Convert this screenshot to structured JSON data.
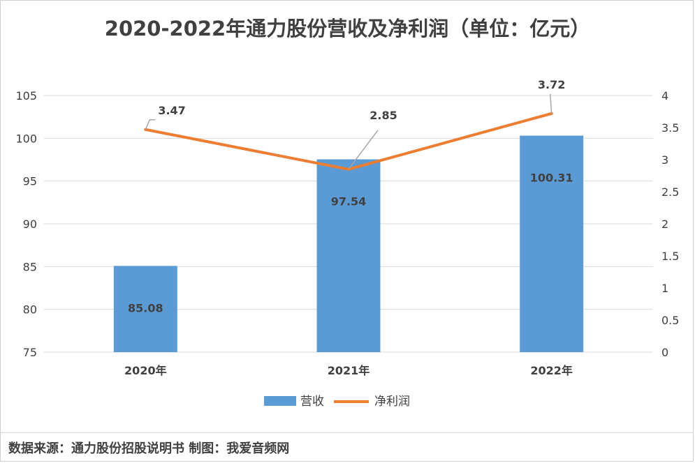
{
  "title": "2020-2022年通力股份营收及净利润（单位：亿元）",
  "footer": "数据来源：通力股份招股说明书 制图：我爱音频网",
  "chart_data": {
    "type": "bar+line",
    "title": "2020-2022年通力股份营收及净利润（单位：亿元）",
    "categories": [
      "2020年",
      "2021年",
      "2022年"
    ],
    "series": [
      {
        "name": "营收",
        "type": "bar",
        "axis": "left",
        "values": [
          85.08,
          97.54,
          100.31
        ],
        "labels": [
          "85.08",
          "97.54",
          "100.31"
        ],
        "color": "#5B9BD5"
      },
      {
        "name": "净利润",
        "type": "line",
        "axis": "right",
        "values": [
          3.47,
          2.85,
          3.72
        ],
        "labels": [
          "3.47",
          "2.85",
          "3.72"
        ],
        "color": "#ED7D31"
      }
    ],
    "y_left": {
      "min": 75,
      "max": 105,
      "step": 5,
      "ticks": [
        "75",
        "80",
        "85",
        "90",
        "95",
        "100",
        "105"
      ]
    },
    "y_right": {
      "min": 0,
      "max": 4,
      "step": 0.5,
      "ticks": [
        "0",
        "0.5",
        "1",
        "1.5",
        "2",
        "2.5",
        "3",
        "3.5",
        "4"
      ]
    },
    "grid": true,
    "legend_position": "bottom"
  }
}
